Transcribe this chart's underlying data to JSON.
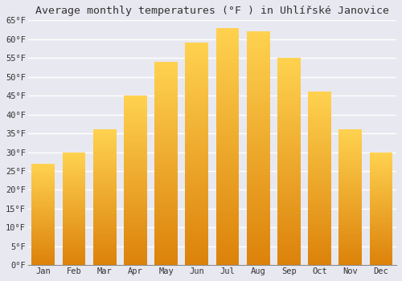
{
  "title": "Average monthly temperatures (°F ) in Uhlířské Janovice",
  "months": [
    "Jan",
    "Feb",
    "Mar",
    "Apr",
    "May",
    "Jun",
    "Jul",
    "Aug",
    "Sep",
    "Oct",
    "Nov",
    "Dec"
  ],
  "values": [
    27,
    30,
    36,
    45,
    54,
    59,
    63,
    62,
    55,
    46,
    36,
    30
  ],
  "ylim": [
    0,
    65
  ],
  "yticks": [
    0,
    5,
    10,
    15,
    20,
    25,
    30,
    35,
    40,
    45,
    50,
    55,
    60,
    65
  ],
  "bar_color_top": "#FFD966",
  "bar_color_bottom": "#E8940A",
  "background_color": "#E8E8F0",
  "plot_bg_color": "#E8E8F0",
  "grid_color": "#ffffff",
  "title_fontsize": 9.5,
  "tick_fontsize": 7.5,
  "bar_width": 0.75
}
